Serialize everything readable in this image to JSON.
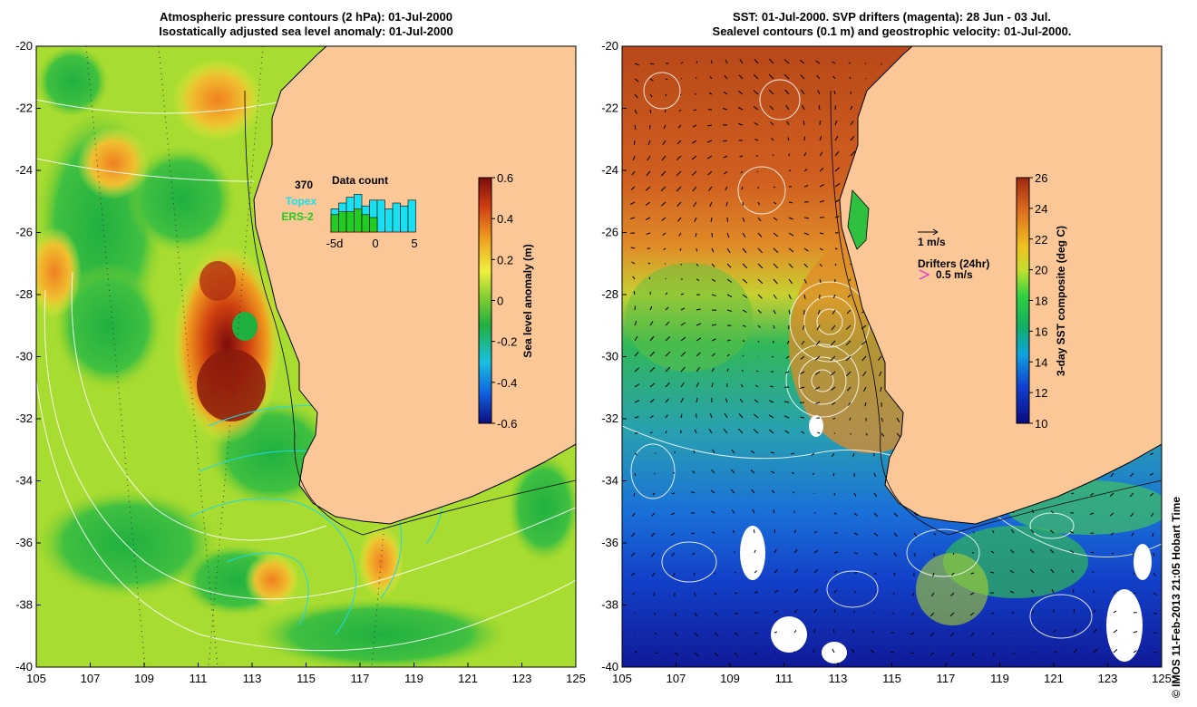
{
  "left_panel": {
    "title_line1": "Atmospheric pressure contours (2 hPa): 01-Jul-2000",
    "title_line2": "Isostatically adjusted sea level anomaly: 01-Jul-2000",
    "x_ticks": [
      "105",
      "107",
      "109",
      "111",
      "113",
      "115",
      "117",
      "119",
      "121",
      "123",
      "125"
    ],
    "y_ticks": [
      "-20",
      "-22",
      "-24",
      "-26",
      "-28",
      "-30",
      "-32",
      "-34",
      "-36",
      "-38",
      "-40"
    ],
    "colorbar": {
      "label": "Sea level anomaly (m)",
      "ticks": [
        "0.6",
        "0.4",
        "0.2",
        "0",
        "-0.2",
        "-0.4",
        "-0.6"
      ],
      "range": [
        -0.6,
        0.6
      ]
    },
    "data_count": {
      "total": "370",
      "title": "Data count",
      "series": [
        {
          "name": "Topex",
          "color": "#19e0f0",
          "values": [
            8,
            10,
            12,
            13,
            9,
            11,
            11,
            8,
            10,
            9,
            11
          ]
        },
        {
          "name": "ERS-2",
          "color": "#22cc22",
          "values": [
            6,
            7,
            7,
            8,
            6,
            5,
            0,
            0,
            0,
            0,
            0
          ]
        }
      ],
      "x_ticks": [
        "-5d",
        "0",
        "5"
      ]
    }
  },
  "right_panel": {
    "title_line1": "SST: 01-Jul-2000. SVP drifters (magenta): 28 Jun - 03 Jul.",
    "title_line2": "Sealevel contours (0.1 m) and geostrophic velocity: 01-Jul-2000.",
    "x_ticks": [
      "105",
      "107",
      "109",
      "111",
      "113",
      "115",
      "117",
      "119",
      "121",
      "123",
      "125"
    ],
    "y_ticks": [
      "-20",
      "-22",
      "-24",
      "-26",
      "-28",
      "-30",
      "-32",
      "-34",
      "-36",
      "-38",
      "-40"
    ],
    "colorbar": {
      "label": "3-day SST composite (deg C)",
      "ticks": [
        "26",
        "24",
        "22",
        "20",
        "18",
        "16",
        "14",
        "12",
        "10"
      ],
      "range": [
        10,
        26
      ]
    },
    "velocity_legend": "1 m/s",
    "drifters_legend": "Drifters (24hr)",
    "drifters_scale": "0.5 m/s"
  },
  "credit": "© IMOS 11-Feb-2013 21:05 Hobart Time",
  "colors": {
    "land": "#fbc796",
    "sla_ramp": [
      "#0c0c7c",
      "#1060e0",
      "#19c0e0",
      "#20b040",
      "#8ad030",
      "#f0f040",
      "#f0a020",
      "#d04010",
      "#7c0c0c"
    ],
    "sst_ramp": [
      "#0b0b80",
      "#1040d0",
      "#10a0e0",
      "#10b060",
      "#30d040",
      "#c0e030",
      "#f0c020",
      "#e07020",
      "#a02810"
    ]
  }
}
